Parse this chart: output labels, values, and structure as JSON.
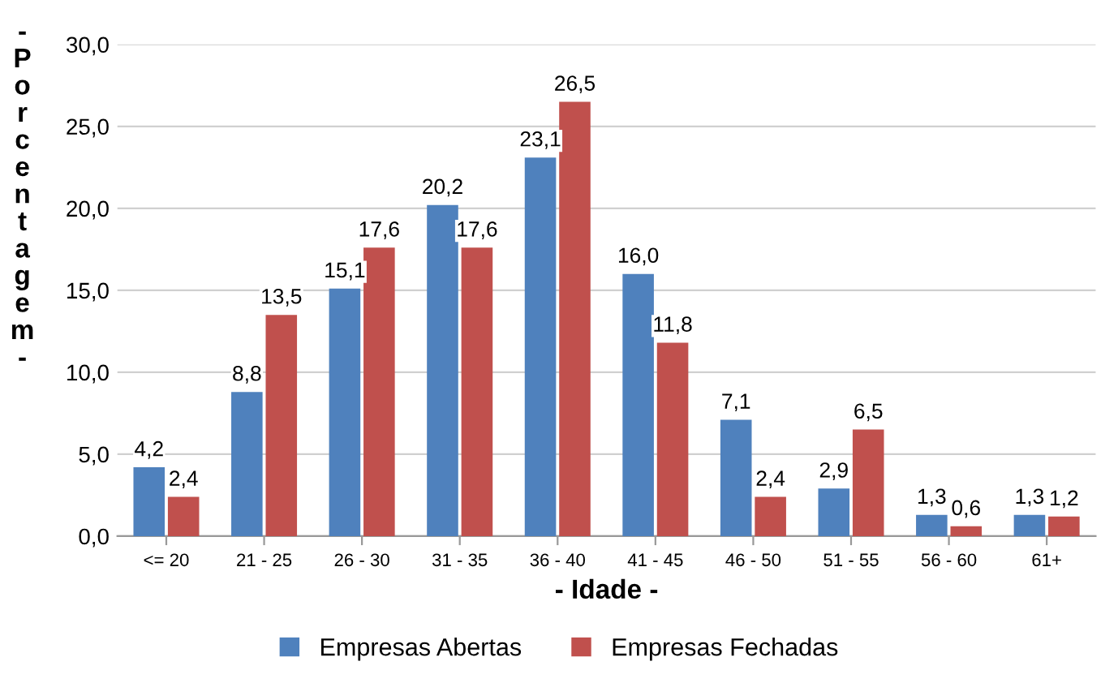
{
  "chart_data": {
    "type": "bar",
    "xlabel": "- Idade -",
    "ylabel": "- Porcentagem -",
    "categories": [
      "<= 20",
      "21 - 25",
      "26 - 30",
      "31 - 35",
      "36 - 40",
      "41 - 45",
      "46 - 50",
      "51 - 55",
      "56 - 60",
      "61+"
    ],
    "series": [
      {
        "name": "Empresas Abertas",
        "color": "#4f81bd",
        "values": [
          4.2,
          8.8,
          15.1,
          20.2,
          23.1,
          16.0,
          7.1,
          2.9,
          1.3,
          1.3
        ],
        "value_labels": [
          "4,2",
          "8,8",
          "15,1",
          "20,2",
          "23,1",
          "16,0",
          "7,1",
          "2,9",
          "1,3",
          "1,3"
        ]
      },
      {
        "name": "Empresas Fechadas",
        "color": "#c0504d",
        "values": [
          2.4,
          13.5,
          17.6,
          17.6,
          26.5,
          11.8,
          2.4,
          6.5,
          0.6,
          1.2
        ],
        "value_labels": [
          "2,4",
          "13,5",
          "17,6",
          "17,6",
          "26,5",
          "11,8",
          "2,4",
          "6,5",
          "0,6",
          "1,2"
        ]
      }
    ],
    "ylim": [
      0,
      30
    ],
    "yticks": [
      {
        "value": 0,
        "label": "0,0"
      },
      {
        "value": 5,
        "label": "5,0"
      },
      {
        "value": 10,
        "label": "10,0"
      },
      {
        "value": 15,
        "label": "15,0"
      },
      {
        "value": 20,
        "label": "20,0"
      },
      {
        "value": 25,
        "label": "25,0"
      },
      {
        "value": 30,
        "label": "30,0"
      }
    ],
    "grid": "y",
    "legend": "bottom"
  }
}
